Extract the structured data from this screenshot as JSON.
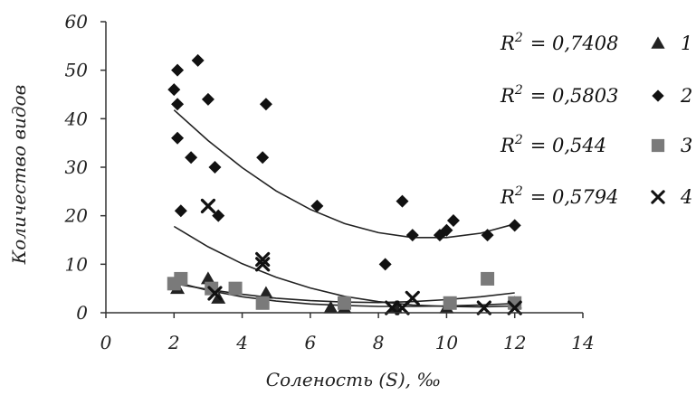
{
  "chart_data": {
    "type": "scatter",
    "title": "",
    "xlabel": "Соленость (S), ‰",
    "ylabel": "Количество видов",
    "xlim": [
      0,
      14
    ],
    "ylim": [
      0,
      60
    ],
    "xticks": [
      "0",
      "2",
      "4",
      "6",
      "8",
      "10",
      "12",
      "14"
    ],
    "yticks": [
      "0",
      "10",
      "20",
      "30",
      "40",
      "50",
      "60"
    ],
    "grid": false,
    "legend_position": "right",
    "series": [
      {
        "name": "1",
        "marker": "triangle",
        "color": "#222222",
        "r2_label": "R",
        "r2_sup": "2",
        "r2_value": "= 0,7408",
        "points": [
          [
            2.1,
            5
          ],
          [
            3.0,
            7
          ],
          [
            3.3,
            3
          ],
          [
            4.7,
            4
          ],
          [
            6.6,
            1
          ],
          [
            7.0,
            1
          ],
          [
            8.5,
            1
          ],
          [
            10.0,
            1
          ],
          [
            12.0,
            2
          ]
        ],
        "trend": [
          [
            2.0,
            6.4
          ],
          [
            3.0,
            4.6
          ],
          [
            4.0,
            3.3
          ],
          [
            5.0,
            2.4
          ],
          [
            6.0,
            1.8
          ],
          [
            7.0,
            1.5
          ],
          [
            8.0,
            1.3
          ],
          [
            9.0,
            1.3
          ],
          [
            10.0,
            1.4
          ],
          [
            11.0,
            1.6
          ],
          [
            12.0,
            1.9
          ]
        ]
      },
      {
        "name": "2",
        "marker": "diamond",
        "color": "#111111",
        "r2_label": "R",
        "r2_sup": "2",
        "r2_value": "= 0,5803",
        "points": [
          [
            2.0,
            46
          ],
          [
            2.1,
            50
          ],
          [
            2.1,
            43
          ],
          [
            2.7,
            52
          ],
          [
            3.0,
            44
          ],
          [
            2.1,
            36
          ],
          [
            2.5,
            32
          ],
          [
            3.2,
            30
          ],
          [
            4.6,
            32
          ],
          [
            4.7,
            43
          ],
          [
            2.2,
            21
          ],
          [
            3.3,
            20
          ],
          [
            6.2,
            22
          ],
          [
            8.7,
            23
          ],
          [
            8.2,
            10
          ],
          [
            9.0,
            16
          ],
          [
            9.8,
            16
          ],
          [
            10.0,
            17
          ],
          [
            10.2,
            19
          ],
          [
            11.2,
            16
          ],
          [
            12.0,
            18
          ]
        ],
        "trend": [
          [
            2.0,
            41.8
          ],
          [
            3.0,
            35.5
          ],
          [
            4.0,
            29.9
          ],
          [
            5.0,
            25.1
          ],
          [
            6.0,
            21.3
          ],
          [
            7.0,
            18.4
          ],
          [
            8.0,
            16.5
          ],
          [
            9.0,
            15.5
          ],
          [
            10.0,
            15.5
          ],
          [
            11.0,
            16.4
          ],
          [
            12.0,
            18.3
          ]
        ]
      },
      {
        "name": "3",
        "marker": "square",
        "color": "#7a7a7a",
        "r2_label": "R",
        "r2_sup": "2",
        "r2_value": "= 0,544",
        "points": [
          [
            2.0,
            6
          ],
          [
            2.2,
            7
          ],
          [
            3.1,
            5
          ],
          [
            3.8,
            5
          ],
          [
            4.6,
            2
          ],
          [
            7.0,
            2
          ],
          [
            10.1,
            2
          ],
          [
            11.2,
            7
          ],
          [
            12.0,
            2
          ]
        ],
        "trend": [
          [
            2.0,
            6.0
          ],
          [
            3.0,
            4.8
          ],
          [
            4.0,
            3.8
          ],
          [
            5.0,
            3.0
          ],
          [
            6.0,
            2.5
          ],
          [
            7.0,
            2.2
          ],
          [
            8.0,
            2.1
          ],
          [
            9.0,
            2.3
          ],
          [
            10.0,
            2.7
          ],
          [
            11.0,
            3.3
          ],
          [
            12.0,
            4.1
          ]
        ]
      },
      {
        "name": "4",
        "marker": "x",
        "color": "#111111",
        "r2_label": "R",
        "r2_sup": "2",
        "r2_value": "= 0,5794",
        "points": [
          [
            3.0,
            22
          ],
          [
            3.2,
            4
          ],
          [
            4.6,
            11
          ],
          [
            4.6,
            10
          ],
          [
            8.4,
            1
          ],
          [
            8.7,
            1
          ],
          [
            9.0,
            3
          ],
          [
            11.1,
            1
          ],
          [
            12.0,
            1
          ]
        ],
        "trend": [
          [
            2.0,
            17.8
          ],
          [
            3.0,
            13.6
          ],
          [
            4.0,
            10.1
          ],
          [
            5.0,
            7.3
          ],
          [
            6.0,
            5.1
          ],
          [
            7.0,
            3.4
          ],
          [
            8.0,
            2.3
          ],
          [
            9.0,
            1.6
          ],
          [
            10.0,
            1.3
          ],
          [
            11.0,
            1.2
          ],
          [
            12.0,
            1.4
          ]
        ]
      }
    ]
  }
}
